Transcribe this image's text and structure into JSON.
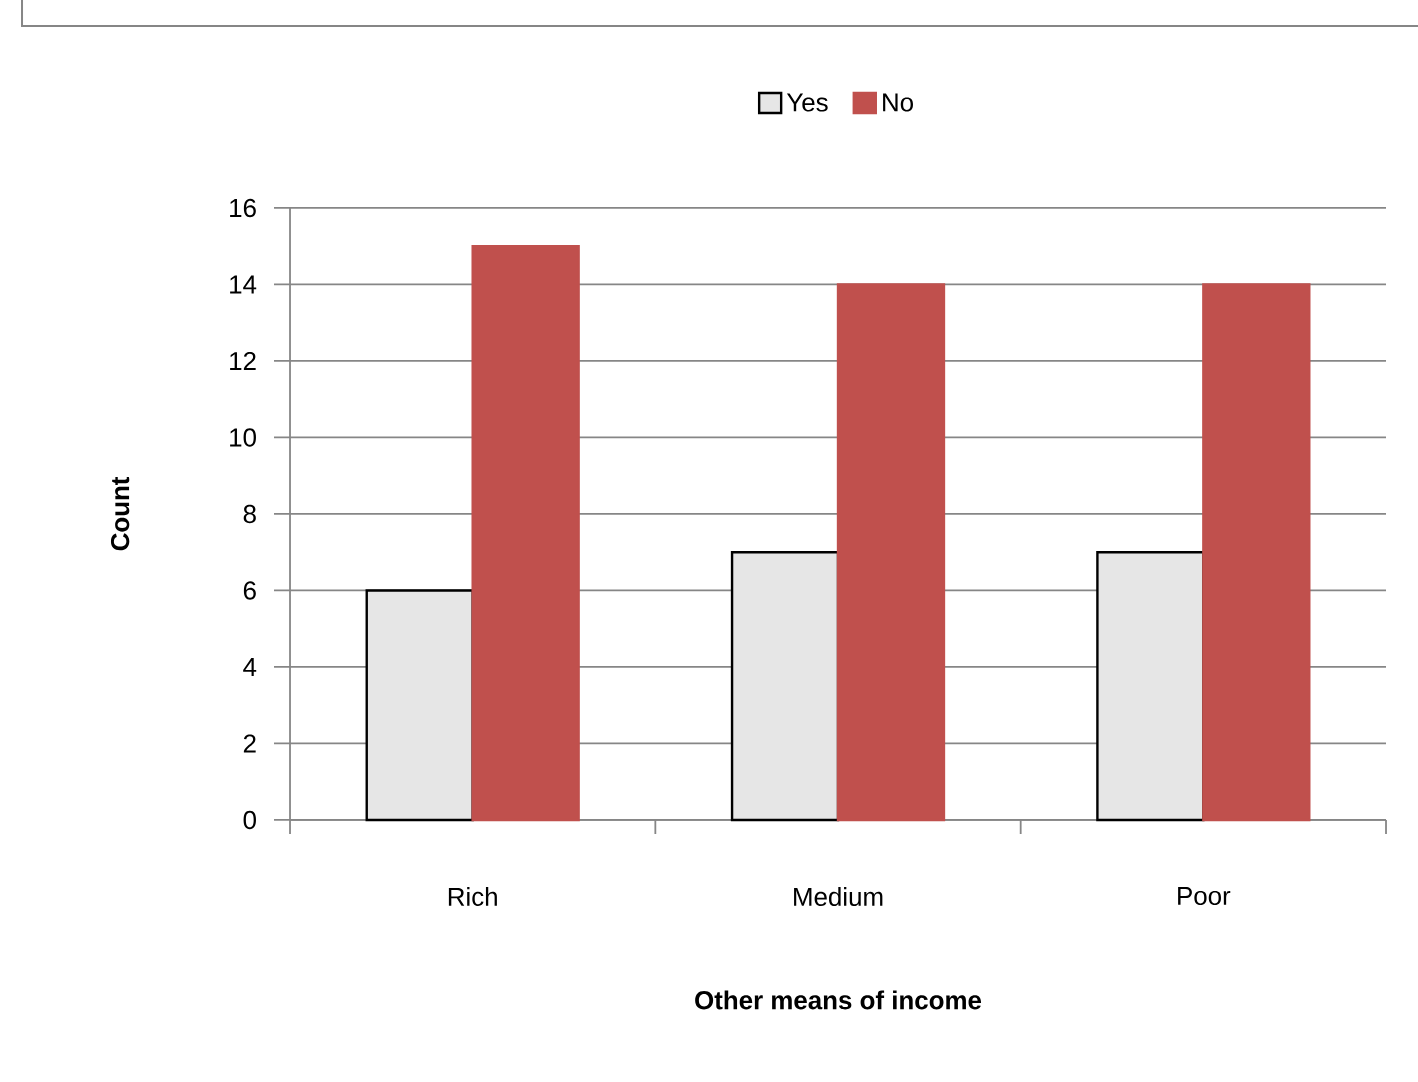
{
  "chart_data": {
    "type": "bar",
    "xlabel": "Other means of income",
    "ylabel": "Count",
    "categories": [
      "Rich",
      "Medium",
      "Poor"
    ],
    "series": [
      {
        "name": "Yes",
        "color": "#e6e6e6",
        "values": [
          6,
          7,
          7
        ]
      },
      {
        "name": "No",
        "color": "#c0504d",
        "values": [
          15,
          14,
          14
        ]
      }
    ],
    "ylim": [
      0,
      16
    ],
    "yticks": [
      0,
      2,
      4,
      6,
      8,
      10,
      12,
      14,
      16
    ],
    "grid": "y",
    "legend": "top"
  }
}
